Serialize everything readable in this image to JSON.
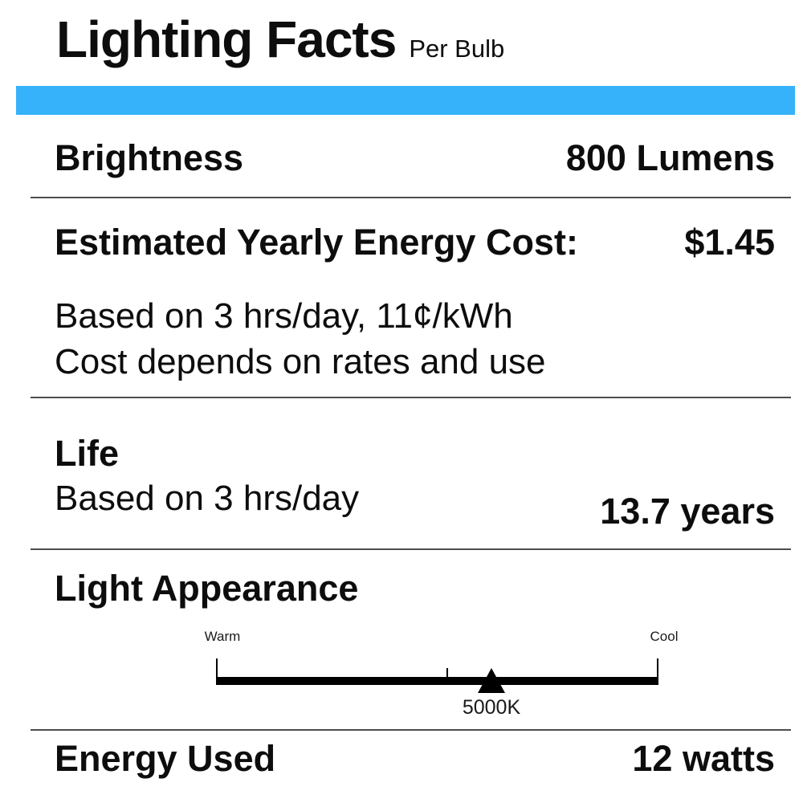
{
  "header": {
    "title": "Lighting Facts",
    "subtitle": "Per Bulb"
  },
  "colors": {
    "accent_bar": "#35B2FA",
    "divider": "#4d4d4d",
    "text": "#0d0d0d",
    "scale": "#000000"
  },
  "sections": {
    "brightness": {
      "label": "Brightness",
      "value": "800 Lumens"
    },
    "energy_cost": {
      "label": "Estimated Yearly Energy Cost:",
      "value": "$1.45",
      "notes": [
        "Based on 3 hrs/day, 11¢/kWh",
        "Cost depends on rates and use"
      ]
    },
    "life": {
      "label": "Life",
      "note": "Based on 3 hrs/day",
      "value": "13.7 years"
    },
    "light_appearance": {
      "label": "Light Appearance",
      "scale": {
        "warm_label": "Warm",
        "cool_label": "Cool",
        "marker_value": "5000K",
        "marker_position_pct": 62,
        "center_tick_pct": 52
      }
    },
    "energy_used": {
      "label": "Energy Used",
      "value": "12 watts"
    }
  }
}
